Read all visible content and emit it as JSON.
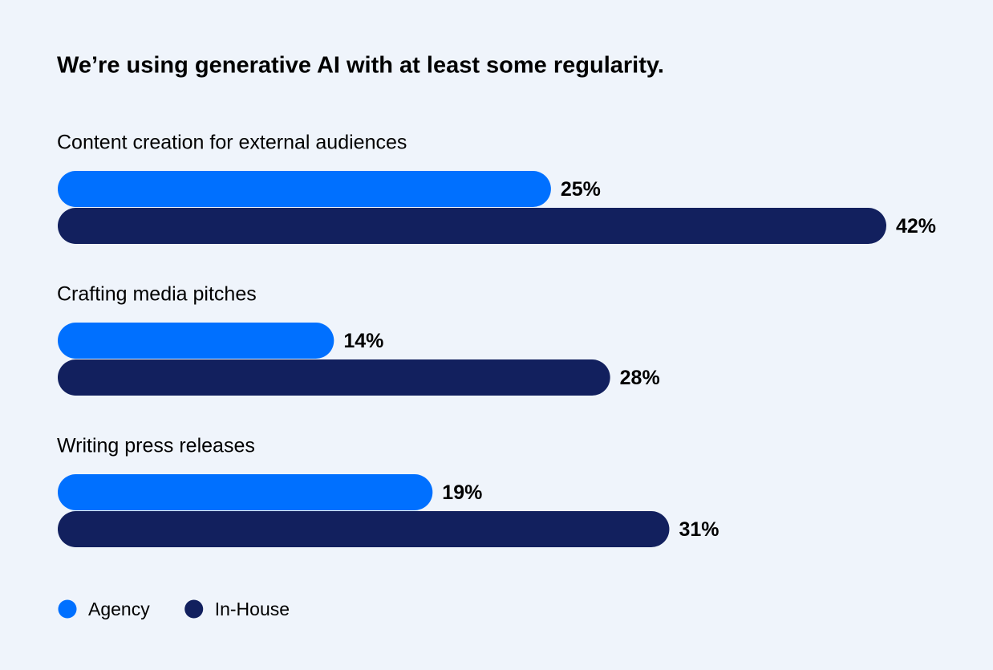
{
  "chart_data": {
    "type": "bar",
    "orientation": "horizontal",
    "title": "We’re using generative AI with at least some regularity.",
    "categories": [
      "Content creation for external audiences",
      "Crafting media pitches",
      "Writing press releases"
    ],
    "series": [
      {
        "name": "Agency",
        "color": "#0070ff",
        "values": [
          25,
          14,
          19
        ],
        "value_labels": [
          "25%",
          "14%",
          "19%"
        ]
      },
      {
        "name": "In-House",
        "color": "#12205e",
        "values": [
          42,
          28,
          31
        ],
        "value_labels": [
          "42%",
          "28%",
          "31%"
        ]
      }
    ],
    "legend": "bottom-left"
  }
}
